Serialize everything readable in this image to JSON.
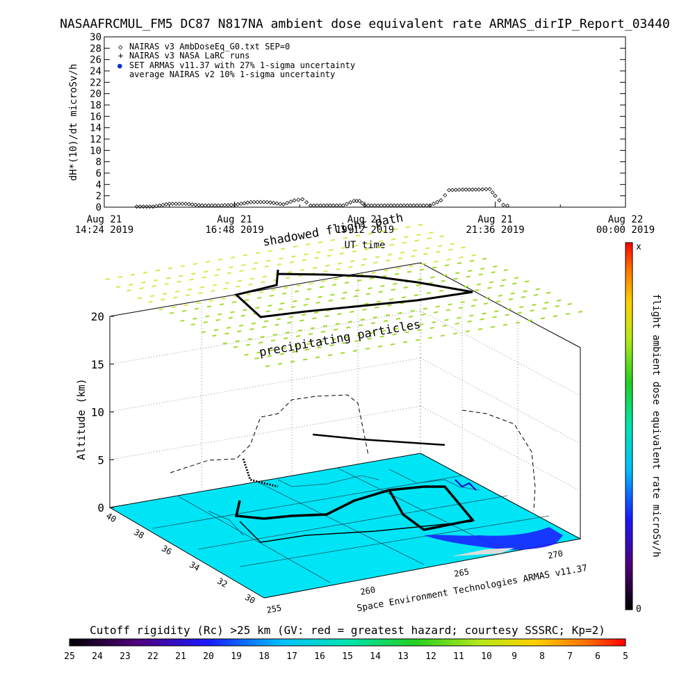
{
  "title": "NASAAFRCMUL_FM5 DC87 N817NA ambient dose equivalent rate ARMAS_dirIP_Report_03440",
  "top_chart": {
    "ylabel": "dH*(10)/dt microSv/h",
    "xlabel": "UT time",
    "yticks": [
      "0",
      "2",
      "4",
      "6",
      "8",
      "10",
      "12",
      "14",
      "16",
      "18",
      "20",
      "22",
      "24",
      "26",
      "28",
      "30"
    ],
    "xticks": [
      {
        "line1": "Aug 21",
        "line2": "14:24 2019"
      },
      {
        "line1": "Aug 21",
        "line2": "16:48 2019"
      },
      {
        "line1": "Aug 21",
        "line2": "19:12 2019"
      },
      {
        "line1": "Aug 21",
        "line2": "21:36 2019"
      },
      {
        "line1": "Aug 22",
        "line2": "00:00 2019"
      }
    ],
    "legend": [
      {
        "symbol": "◇",
        "label": "NAIRAS v3 AmbDoseEq_G0.txt SEP=0"
      },
      {
        "symbol": "+",
        "label": "NAIRAS v3 NASA LaRC runs"
      },
      {
        "symbol": "●",
        "label": "SET ARMAS v11.37 with 27% 1-sigma uncertainty"
      },
      {
        "symbol": "",
        "label": "average NAIRAS v2 10% 1-sigma uncertainty"
      }
    ]
  },
  "chart_data": [
    {
      "type": "scatter",
      "title": "NASAAFRCMUL_FM5 DC87 N817NA ambient dose equivalent rate ARMAS_dirIP_Report_03440",
      "xlabel": "UT time",
      "ylabel": "dH*(10)/dt microSv/h",
      "ylim": [
        0,
        30
      ],
      "xlim": [
        "Aug 21 14:24 2019",
        "Aug 22 00:00 2019"
      ],
      "series": [
        {
          "name": "NAIRAS v3 AmbDoseEq_G0.txt SEP=0",
          "x": [
            "15:00",
            "15:18",
            "15:36",
            "15:54",
            "16:12",
            "16:30",
            "16:48",
            "17:06",
            "17:24",
            "17:42",
            "17:54",
            "18:03",
            "18:12",
            "18:30",
            "18:48",
            "19:00",
            "19:06",
            "19:12",
            "19:30",
            "19:48",
            "20:06",
            "20:24",
            "20:36",
            "20:45",
            "21:00",
            "21:18",
            "21:30",
            "21:36",
            "21:45",
            "21:54"
          ],
          "y": [
            0.1,
            0.1,
            0.6,
            0.6,
            0.3,
            0.3,
            0.4,
            0.9,
            0.9,
            0.5,
            1.2,
            1.4,
            0.3,
            0.3,
            0.3,
            1.1,
            1.1,
            0.3,
            0.3,
            0.3,
            0.3,
            0.3,
            1.2,
            3.0,
            3.1,
            3.1,
            3.2,
            2.0,
            0.4,
            0.1
          ]
        }
      ]
    },
    {
      "type": "scatter",
      "title": "",
      "zlabel": "Altitude (km)",
      "zticks": [
        "0",
        "5",
        "10",
        "15",
        "20"
      ],
      "lat_ticks": [
        "40",
        "38",
        "36",
        "34",
        "32",
        "30"
      ],
      "lon_ticks": [
        "255",
        "260",
        "265",
        "270"
      ],
      "annotations": [
        "shadowed flight path",
        "precipitating particles"
      ],
      "credit": "Space Environment Technologies ARMAS v11.37"
    }
  ],
  "right_colorbar": {
    "label": "flight ambient dose equivalent rate microSv/h",
    "top": "x",
    "bottom": "0"
  },
  "bottom_colorbar": {
    "label": "Cutoff rigidity (Rc) >25 km (GV: red = greatest hazard; courtesy SSSRC; Kp=2)",
    "ticks": [
      "25",
      "24",
      "23",
      "22",
      "21",
      "20",
      "19",
      "18",
      "17",
      "16",
      "15",
      "14",
      "13",
      "12",
      "11",
      "10",
      "9",
      "8",
      "7",
      "6",
      "5"
    ]
  },
  "colors": {
    "map_fill": "#00e5f5",
    "particle_band": "#9fdc2a",
    "track": "#000000"
  }
}
